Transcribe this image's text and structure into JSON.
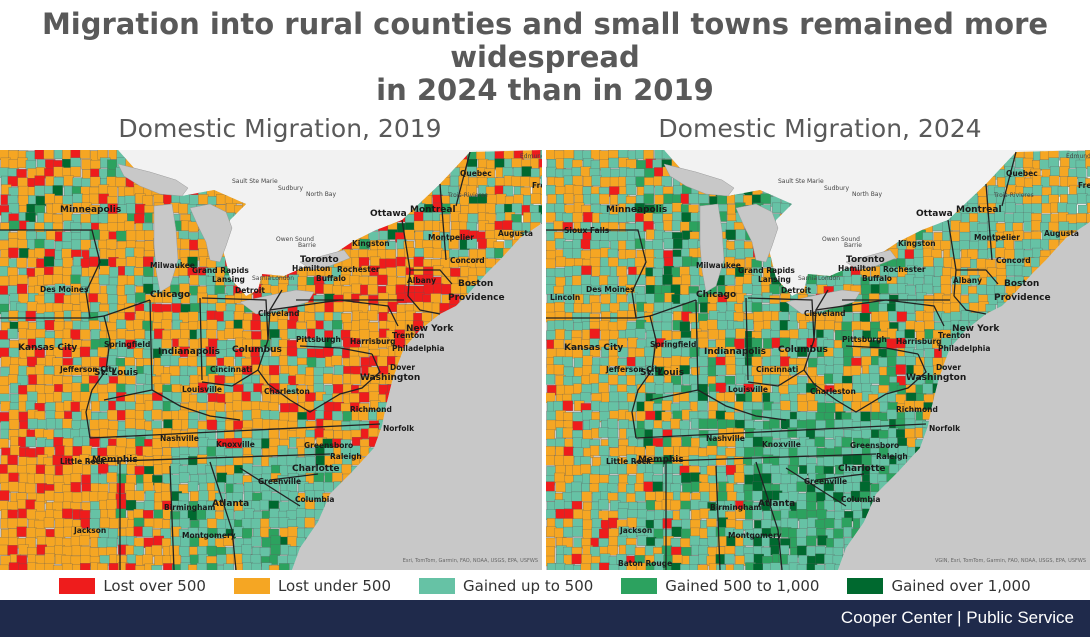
{
  "header": {
    "title_line1": "Migration into rural counties and small towns remained more widespread",
    "title_line2": "in 2024 than in 2019"
  },
  "maps": [
    {
      "id": "left",
      "title": "Domestic Migration, 2019",
      "attribution": "Esri, TomTom, Garmin, FAO, NOAA, USGS, EPA, USFWS",
      "mix": {
        "lost_over_500": 0.14,
        "lost_under_500": 0.52,
        "gained_up_to_500": 0.28,
        "gained_500_to_1000": 0.04,
        "gained_over_1000": 0.02
      },
      "cities": [
        "Minneapolis",
        "Milwaukee",
        "Grand Rapids",
        "Lansing",
        "Chicago",
        "Detroit",
        "Des Moines",
        "Toronto",
        "Hamilton",
        "Buffalo",
        "Rochester",
        "Albany",
        "Boston",
        "Providence",
        "Cleveland",
        "Pittsburgh",
        "Harrisburg",
        "Trenton",
        "Philadelphia",
        "New York",
        "Springfield",
        "Indianapolis",
        "Columbus",
        "St. Louis",
        "Cincinnati",
        "Jefferson City",
        "Louisville",
        "Charleston",
        "Washington",
        "Dover",
        "Richmond",
        "Norfolk",
        "Nashville",
        "Knoxville",
        "Greensboro",
        "Raleigh",
        "Charlotte",
        "Memphis",
        "Little Rock",
        "Greenville",
        "Columbia",
        "Birmingham",
        "Atlanta",
        "Jackson",
        "Montgomery",
        "Kansas City",
        "Ottawa",
        "Montreal",
        "Quebec",
        "Augusta",
        "Concord",
        "Montpelier",
        "Kingston",
        "Fredericton"
      ]
    },
    {
      "id": "right",
      "title": "Domestic Migration, 2024",
      "attribution": "VGIN, Esri, TomTom, Garmin, FAO, NOAA, USGS, EPA, USFWS",
      "mix": {
        "lost_over_500": 0.04,
        "lost_under_500": 0.34,
        "gained_up_to_500": 0.42,
        "gained_500_to_1000": 0.13,
        "gained_over_1000": 0.07
      },
      "cities": [
        "Minneapolis",
        "Milwaukee",
        "Grand Rapids",
        "Lansing",
        "Chicago",
        "Detroit",
        "Des Moines",
        "Toronto",
        "Hamilton",
        "Buffalo",
        "Rochester",
        "Albany",
        "Boston",
        "Providence",
        "Cleveland",
        "Pittsburgh",
        "Harrisburg",
        "Trenton",
        "Philadelphia",
        "New York",
        "Springfield",
        "Indianapolis",
        "Columbus",
        "St. Louis",
        "Cincinnati",
        "Jefferson City",
        "Louisville",
        "Charleston",
        "Washington",
        "Dover",
        "Richmond",
        "Norfolk",
        "Nashville",
        "Knoxville",
        "Greensboro",
        "Raleigh",
        "Charlotte",
        "Memphis",
        "Little Rock",
        "Greenville",
        "Columbia",
        "Birmingham",
        "Atlanta",
        "Jackson",
        "Montgomery",
        "Kansas City",
        "Ottawa",
        "Montreal",
        "Quebec",
        "Augusta",
        "Concord",
        "Montpelier",
        "Kingston",
        "Fredericton",
        "Baton Rouge",
        "Lincoln",
        "Sioux Falls"
      ]
    }
  ],
  "canada_labels": [
    "Sault Ste Marie",
    "Sudbury",
    "North Bay",
    "Trois-Rivieres",
    "Owen Sound",
    "Barrie",
    "Sarnia",
    "London",
    "Edmundston"
  ],
  "legend": [
    {
      "label": "Lost over 500",
      "color": "#ee1c1c"
    },
    {
      "label": "Lost under 500",
      "color": "#f5a623"
    },
    {
      "label": "Gained up to 500",
      "color": "#66c2a5"
    },
    {
      "label": "Gained 500 to 1,000",
      "color": "#2ca25f"
    },
    {
      "label": "Gained over 1,000",
      "color": "#00692f"
    }
  ],
  "colors": {
    "water": "#c8c8c8",
    "land_outside": "#f2f2f2",
    "state_border": "#222222",
    "footer": "#1f2a4b"
  },
  "footer": {
    "text": "Cooper Center | Public Service"
  }
}
